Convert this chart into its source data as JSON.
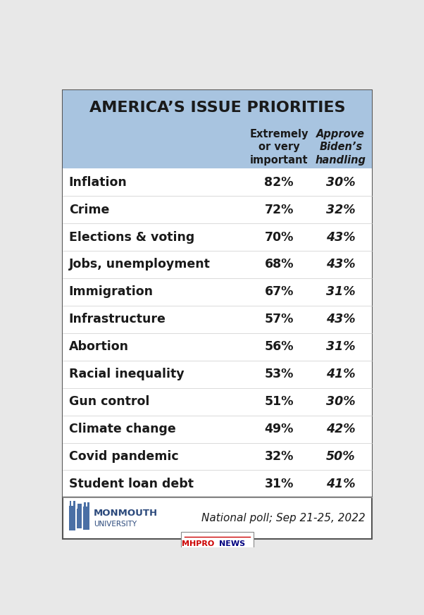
{
  "title": "AMERICA’S ISSUE PRIORITIES",
  "header_col1": "Extremely\nor very\nimportant",
  "header_col2": "Approve\nBiden’s\nhandling",
  "rows": [
    {
      "issue": "Inflation",
      "col1": "82%",
      "col2": "30%"
    },
    {
      "issue": "Crime",
      "col1": "72%",
      "col2": "32%"
    },
    {
      "issue": "Elections & voting",
      "col1": "70%",
      "col2": "43%"
    },
    {
      "issue": "Jobs, unemployment",
      "col1": "68%",
      "col2": "43%"
    },
    {
      "issue": "Immigration",
      "col1": "67%",
      "col2": "31%"
    },
    {
      "issue": "Infrastructure",
      "col1": "57%",
      "col2": "43%"
    },
    {
      "issue": "Abortion",
      "col1": "56%",
      "col2": "31%"
    },
    {
      "issue": "Racial inequality",
      "col1": "53%",
      "col2": "41%"
    },
    {
      "issue": "Gun control",
      "col1": "51%",
      "col2": "30%"
    },
    {
      "issue": "Climate change",
      "col1": "49%",
      "col2": "42%"
    },
    {
      "issue": "Covid pandemic",
      "col1": "32%",
      "col2": "50%"
    },
    {
      "issue": "Student loan debt",
      "col1": "31%",
      "col2": "41%"
    }
  ],
  "header_bg": "#a8c4e0",
  "title_bg": "#a8c4e0",
  "row_bg": "#ffffff",
  "border_color": "#555555",
  "text_color": "#1a1a1a",
  "footer_text": "National poll; Sep 21-25, 2022",
  "footer_bg": "#ffffff",
  "figsize": [
    6.02,
    8.73
  ],
  "dpi": 100
}
